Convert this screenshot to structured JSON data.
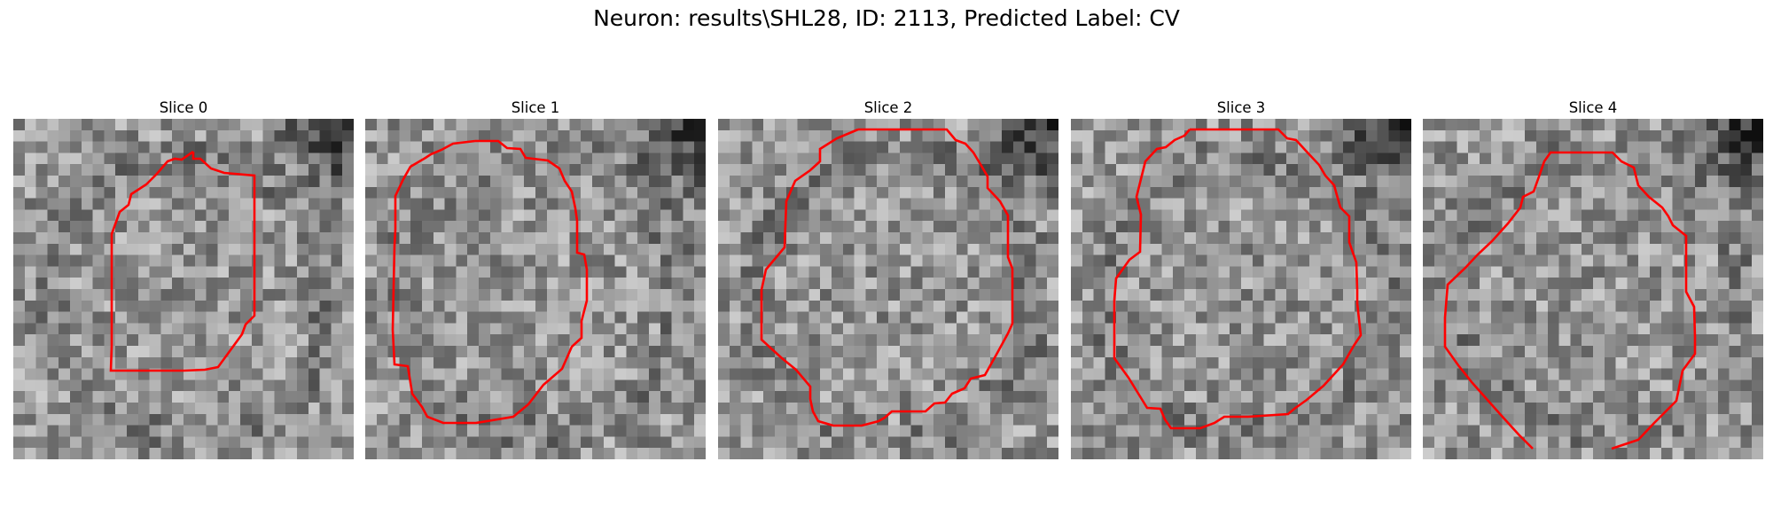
{
  "figure": {
    "title": "Neuron: results\\SHL28, ID: 2113, Predicted Label: CV"
  },
  "slices": [
    {
      "title": "Slice 0"
    },
    {
      "title": "Slice 1"
    },
    {
      "title": "Slice 2"
    },
    {
      "title": "Slice 3"
    },
    {
      "title": "Slice 4"
    }
  ],
  "colors": {
    "contour": "#ff0000",
    "colormap": "gray"
  }
}
